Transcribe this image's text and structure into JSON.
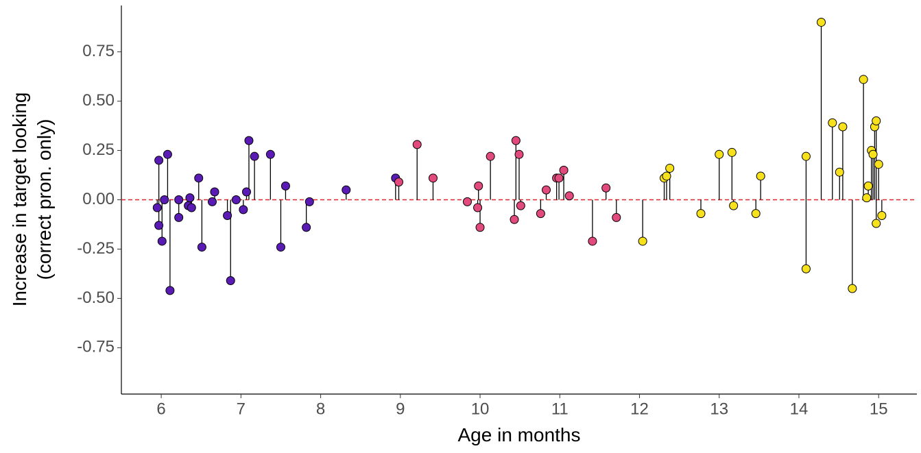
{
  "chart_data": {
    "type": "lollipop",
    "x_label": "Age in months",
    "y_label": [
      "Increase in target looking",
      "(correct pron. only)"
    ],
    "xlim": [
      5.5,
      15.48
    ],
    "ylim": [
      -0.985,
      0.985
    ],
    "xticks": [
      6,
      7,
      8,
      9,
      10,
      11,
      12,
      13,
      14,
      15
    ],
    "yticks": [
      -0.75,
      {
        "value": -0.5,
        "label": "-0.50"
      },
      -0.25,
      {
        "value": 0,
        "label": "0.00"
      },
      0.25,
      {
        "value": 0.5,
        "label": "0.50"
      },
      0.75
    ],
    "hline": 0,
    "hline_color": "#e3242b",
    "series": [
      {
        "color": "#5a1bb5",
        "x": [
          5.95,
          5.97,
          5.97,
          6.01,
          6.04,
          6.08,
          6.11,
          6.22,
          6.22,
          6.34,
          6.36,
          6.38,
          6.47,
          6.51,
          6.64,
          6.67,
          6.83,
          6.87,
          6.94,
          7.03,
          7.07,
          7.1,
          7.17,
          7.37,
          7.5,
          7.56,
          7.82,
          7.86,
          8.32,
          8.94
        ],
        "values": [
          -0.04,
          0.2,
          -0.13,
          -0.21,
          0.0,
          0.23,
          -0.46,
          0.0,
          -0.09,
          -0.03,
          0.01,
          -0.04,
          0.11,
          -0.24,
          -0.01,
          0.04,
          -0.08,
          -0.41,
          0.0,
          -0.05,
          0.04,
          0.3,
          0.22,
          0.23,
          -0.24,
          0.07,
          -0.14,
          -0.01,
          0.05,
          0.11
        ]
      },
      {
        "color": "#e2497d",
        "x": [
          8.98,
          9.21,
          9.41,
          9.84,
          9.98,
          9.97,
          10.0,
          10.13,
          10.43,
          10.45,
          10.49,
          10.51,
          10.76,
          10.83,
          10.96,
          10.99,
          11.05,
          11.12,
          11.41,
          11.58,
          11.71
        ],
        "values": [
          0.09,
          0.28,
          0.11,
          -0.01,
          0.07,
          -0.04,
          -0.14,
          0.22,
          -0.1,
          0.3,
          0.23,
          -0.03,
          -0.07,
          0.05,
          0.11,
          0.11,
          0.15,
          0.02,
          -0.21,
          0.06,
          -0.09
        ]
      },
      {
        "color": "#f7e11d",
        "x": [
          12.04,
          12.31,
          12.34,
          12.38,
          12.77,
          13.0,
          13.16,
          13.18,
          13.46,
          13.52,
          14.09,
          14.09,
          14.28,
          14.42,
          14.51,
          14.55,
          14.67,
          14.81,
          14.85,
          14.87,
          14.91,
          14.93,
          14.95,
          14.97,
          14.97,
          15.0,
          15.04
        ],
        "values": [
          -0.21,
          0.11,
          0.12,
          0.16,
          -0.07,
          0.23,
          0.24,
          -0.03,
          -0.07,
          0.12,
          0.22,
          -0.35,
          0.9,
          0.39,
          0.14,
          0.37,
          -0.45,
          0.61,
          0.01,
          0.07,
          0.25,
          0.23,
          0.37,
          0.4,
          -0.12,
          0.18,
          -0.08
        ]
      }
    ]
  }
}
